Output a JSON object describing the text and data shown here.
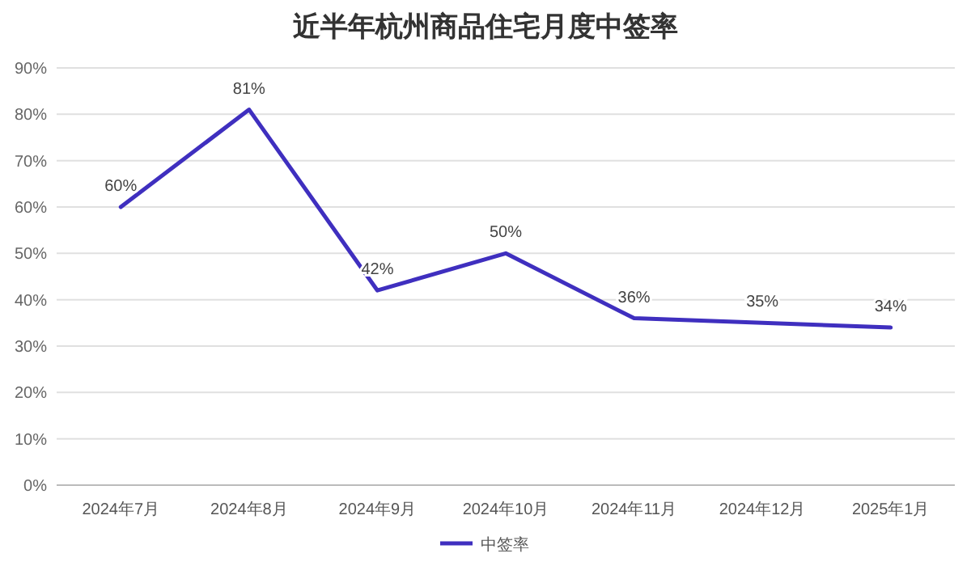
{
  "chart_data": {
    "type": "line",
    "title": "近半年杭州商品住宅月度中签率",
    "categories": [
      "2024年7月",
      "2024年8月",
      "2024年9月",
      "2024年10月",
      "2024年11月",
      "2024年12月",
      "2025年1月"
    ],
    "series": [
      {
        "name": "中签率",
        "color": "#3f2fbf",
        "values": [
          60,
          81,
          42,
          50,
          36,
          35,
          34
        ],
        "value_labels": [
          "60%",
          "81%",
          "42%",
          "50%",
          "36%",
          "35%",
          "34%"
        ]
      }
    ],
    "ylim": [
      0,
      90
    ],
    "yticks": [
      {
        "value": 0,
        "label": "0%"
      },
      {
        "value": 10,
        "label": "10%"
      },
      {
        "value": 20,
        "label": "20%"
      },
      {
        "value": 30,
        "label": "30%"
      },
      {
        "value": 40,
        "label": "40%"
      },
      {
        "value": 50,
        "label": "50%"
      },
      {
        "value": 60,
        "label": "60%"
      },
      {
        "value": 70,
        "label": "70%"
      },
      {
        "value": 80,
        "label": "80%"
      },
      {
        "value": 90,
        "label": "90%"
      }
    ],
    "grid": "y",
    "legend": "bottom",
    "marker": "none",
    "line_style": "solid"
  }
}
